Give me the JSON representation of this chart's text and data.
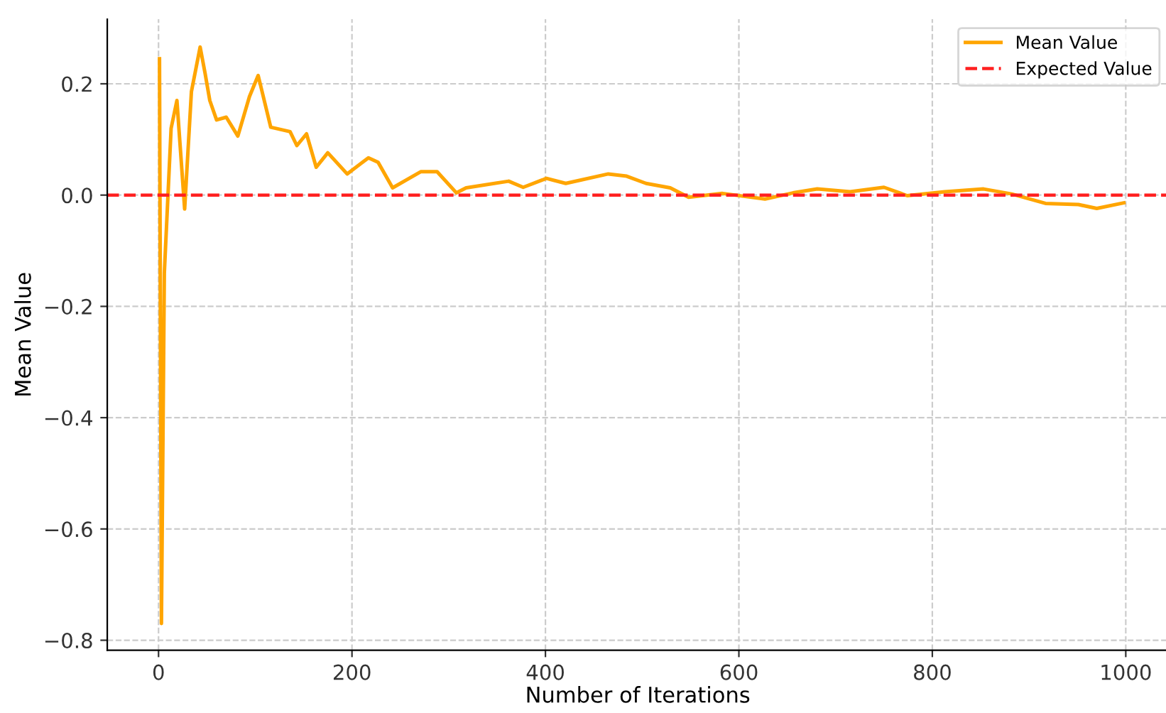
{
  "chart_data": {
    "type": "line",
    "xlabel": "Number of Iterations",
    "ylabel": "Mean Value",
    "series": [
      {
        "name": "Mean Value",
        "color": "#ffa500",
        "x": [
          1,
          3,
          6,
          13,
          19,
          27,
          34,
          43,
          48,
          53,
          60,
          70,
          82,
          94,
          103,
          116,
          136,
          143,
          153,
          163,
          175,
          195,
          217,
          227,
          242,
          271,
          288,
          308,
          318,
          362,
          377,
          401,
          421,
          465,
          484,
          504,
          529,
          548,
          583,
          627,
          656,
          681,
          715,
          750,
          774,
          813,
          853,
          882,
          917,
          951,
          970,
          998
        ],
        "values": [
          0.245,
          -0.77,
          -0.14,
          0.12,
          0.17,
          -0.025,
          0.186,
          0.266,
          0.22,
          0.17,
          0.135,
          0.14,
          0.106,
          0.177,
          0.215,
          0.122,
          0.114,
          0.089,
          0.11,
          0.05,
          0.076,
          0.038,
          0.067,
          0.059,
          0.013,
          0.042,
          0.042,
          0.004,
          0.013,
          0.025,
          0.014,
          0.03,
          0.021,
          0.038,
          0.034,
          0.021,
          0.013,
          -0.004,
          0.003,
          -0.007,
          0.004,
          0.011,
          0.006,
          0.014,
          -0.001,
          0.006,
          0.011,
          0.002,
          -0.015,
          -0.017,
          -0.024,
          -0.014
        ]
      }
    ],
    "ref_lines": [
      {
        "axis": "y",
        "value": 0,
        "label": "Expected Value",
        "color": "#ff2020",
        "line_style": "dashed"
      }
    ],
    "xlim": [
      -53,
      1044
    ],
    "ylim": [
      -0.818,
      0.316
    ],
    "xticks": [
      0,
      200,
      400,
      600,
      800,
      1000
    ],
    "yticks": [
      {
        "value": -0.8,
        "label": "−0.8"
      },
      {
        "value": -0.6,
        "label": "−0.6"
      },
      {
        "value": -0.4,
        "label": "−0.4"
      },
      {
        "value": -0.2,
        "label": "−0.2"
      },
      {
        "value": 0,
        "label": "0.0"
      },
      {
        "value": 0.2,
        "label": "0.2"
      }
    ],
    "grid": true,
    "legend": "top right",
    "line_style": "solid"
  }
}
